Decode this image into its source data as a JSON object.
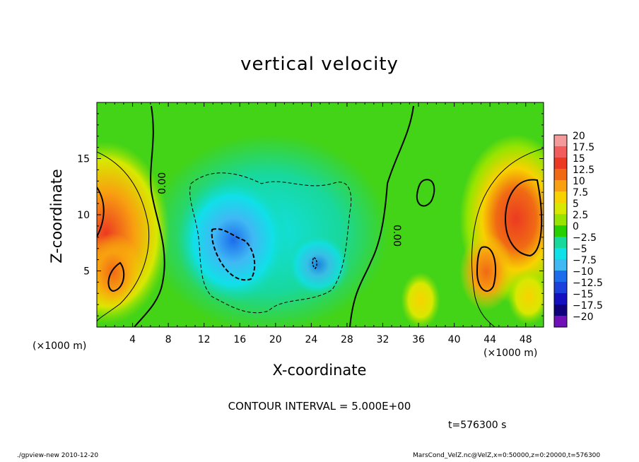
{
  "chart_data": {
    "type": "heatmap",
    "title": "vertical velocity",
    "xlabel": "X-coordinate",
    "ylabel": "Z-coordinate",
    "x_unit_label": "(×1000 m)",
    "xlim": [
      0,
      50
    ],
    "ylim": [
      0,
      20
    ],
    "x_ticks": [
      4,
      8,
      12,
      16,
      20,
      24,
      28,
      32,
      36,
      40,
      44,
      48
    ],
    "y_ticks": [
      5,
      10,
      15
    ],
    "zero_contour_labels": [
      "0.00",
      "0.00"
    ],
    "colorbar": {
      "labels": [
        "20",
        "17.5",
        "15",
        "12.5",
        "10",
        "7.5",
        "5",
        "2.5",
        "0",
        "−2.5",
        "−5",
        "−7.5",
        "−10",
        "−12.5",
        "−15",
        "−17.5",
        "−20"
      ],
      "colors": [
        "#f49a9a",
        "#f25c5c",
        "#ec3a22",
        "#f06a14",
        "#f8a010",
        "#f8d200",
        "#d8e800",
        "#96e400",
        "#28d000",
        "#18d89c",
        "#10e0e8",
        "#40b8f4",
        "#1c6cec",
        "#1c40dc",
        "#1410c0",
        "#10007c",
        "#7010b8"
      ]
    },
    "contour_interval_text": "CONTOUR INTERVAL = 5.000E+00",
    "time_text": "t=576300 s"
  },
  "footer": {
    "left": "./gpview-new  2010-12-20",
    "right": "MarsCond_VelZ.nc@VelZ,x=0:50000,z=0:20000,t=576300"
  }
}
